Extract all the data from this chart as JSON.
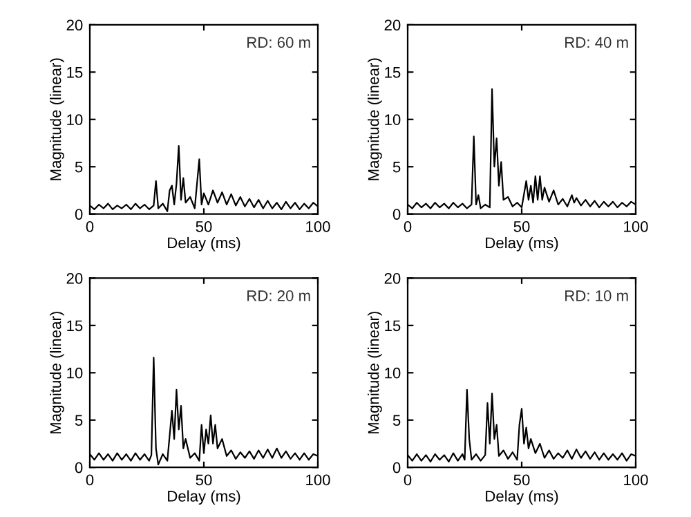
{
  "chart_data": [
    {
      "type": "line",
      "xlabel": "Delay (ms)",
      "ylabel": "Magnitude (linear)",
      "annotations": [
        "RD: 60 m"
      ],
      "xlim": [
        0,
        100
      ],
      "ylim": [
        0,
        20
      ],
      "xticks": [
        0,
        50,
        100
      ],
      "yticks": [
        0,
        5,
        10,
        15,
        20
      ],
      "series": [
        {
          "color": "#000000",
          "x": [
            0,
            2,
            4,
            6,
            8,
            10,
            12,
            14,
            16,
            18,
            20,
            22,
            24,
            26,
            28,
            29,
            30,
            32,
            34,
            35,
            36,
            37,
            38,
            39,
            40,
            41,
            42,
            44,
            46,
            48,
            49,
            50,
            52,
            54,
            56,
            58,
            60,
            62,
            64,
            66,
            68,
            70,
            72,
            74,
            76,
            78,
            80,
            82,
            84,
            86,
            88,
            90,
            92,
            94,
            96,
            98,
            100
          ],
          "values": [
            0.9,
            0.5,
            1.0,
            0.6,
            1.1,
            0.5,
            0.9,
            0.6,
            1.0,
            0.5,
            1.1,
            0.6,
            1.0,
            0.5,
            0.9,
            3.5,
            0.6,
            1.1,
            0.3,
            2.5,
            3.0,
            1.0,
            3.2,
            7.2,
            1.5,
            3.8,
            1.2,
            1.8,
            0.6,
            5.8,
            1.0,
            2.2,
            1.0,
            2.5,
            1.2,
            2.3,
            1.0,
            2.1,
            0.9,
            1.8,
            0.8,
            1.6,
            0.7,
            1.5,
            0.6,
            1.4,
            0.6,
            1.2,
            0.5,
            1.3,
            0.6,
            1.2,
            0.5,
            1.1,
            0.6,
            1.2,
            0.8
          ]
        }
      ]
    },
    {
      "type": "line",
      "xlabel": "Delay (ms)",
      "ylabel": "Magnitude (linear)",
      "annotations": [
        "RD: 40 m"
      ],
      "xlim": [
        0,
        100
      ],
      "ylim": [
        0,
        20
      ],
      "xticks": [
        0,
        50,
        100
      ],
      "yticks": [
        0,
        5,
        10,
        15,
        20
      ],
      "series": [
        {
          "color": "#000000",
          "x": [
            0,
            2,
            4,
            6,
            8,
            10,
            12,
            14,
            16,
            18,
            20,
            22,
            24,
            26,
            28,
            29,
            30,
            31,
            32,
            34,
            36,
            37,
            38,
            39,
            40,
            41,
            42,
            44,
            46,
            48,
            50,
            52,
            53,
            54,
            55,
            56,
            57,
            58,
            59,
            60,
            62,
            64,
            66,
            68,
            70,
            72,
            73,
            74,
            76,
            78,
            80,
            82,
            84,
            86,
            88,
            90,
            92,
            94,
            96,
            98,
            100
          ],
          "values": [
            1.0,
            0.6,
            1.2,
            0.7,
            1.1,
            0.6,
            1.2,
            0.7,
            1.1,
            0.6,
            1.2,
            0.7,
            1.1,
            0.6,
            1.0,
            8.2,
            1.0,
            2.0,
            0.6,
            1.0,
            0.7,
            13.2,
            5.0,
            8.0,
            3.0,
            5.5,
            1.5,
            1.8,
            0.8,
            1.2,
            0.7,
            3.5,
            1.5,
            3.0,
            1.2,
            4.0,
            1.5,
            4.0,
            1.5,
            2.8,
            1.3,
            2.5,
            1.0,
            1.6,
            0.8,
            2.0,
            1.2,
            1.7,
            0.9,
            1.5,
            0.8,
            1.4,
            0.7,
            1.3,
            0.8,
            1.3,
            0.7,
            1.2,
            0.8,
            1.3,
            1.0
          ]
        }
      ]
    },
    {
      "type": "line",
      "xlabel": "Delay (ms)",
      "ylabel": "Magnitude (linear)",
      "annotations": [
        "RD: 20 m"
      ],
      "xlim": [
        0,
        100
      ],
      "ylim": [
        0,
        20
      ],
      "xticks": [
        0,
        50,
        100
      ],
      "yticks": [
        0,
        5,
        10,
        15,
        20
      ],
      "series": [
        {
          "color": "#000000",
          "x": [
            0,
            2,
            4,
            6,
            8,
            10,
            12,
            14,
            16,
            18,
            20,
            22,
            24,
            26,
            27,
            28,
            29,
            30,
            32,
            34,
            36,
            37,
            38,
            39,
            40,
            41,
            42,
            44,
            46,
            48,
            49,
            50,
            51,
            52,
            53,
            54,
            55,
            56,
            58,
            60,
            62,
            64,
            66,
            68,
            70,
            72,
            74,
            76,
            78,
            80,
            82,
            84,
            86,
            88,
            90,
            92,
            94,
            96,
            98,
            100
          ],
          "values": [
            1.4,
            0.8,
            1.5,
            0.8,
            1.4,
            0.7,
            1.5,
            0.8,
            1.4,
            0.7,
            1.5,
            0.8,
            1.4,
            0.7,
            1.3,
            11.6,
            2.0,
            0.3,
            1.4,
            0.7,
            6.0,
            3.0,
            8.2,
            4.0,
            6.5,
            2.0,
            3.0,
            1.0,
            1.5,
            0.7,
            4.5,
            1.5,
            4.0,
            2.5,
            5.5,
            2.5,
            4.5,
            2.0,
            3.0,
            1.2,
            1.8,
            0.9,
            1.6,
            1.0,
            1.7,
            0.9,
            1.8,
            1.0,
            1.9,
            1.0,
            2.0,
            1.0,
            1.7,
            0.9,
            1.5,
            0.8,
            1.5,
            0.8,
            1.4,
            1.2
          ]
        }
      ]
    },
    {
      "type": "line",
      "xlabel": "Delay (ms)",
      "ylabel": "Magnitude (linear)",
      "annotations": [
        "RD: 10 m"
      ],
      "xlim": [
        0,
        100
      ],
      "ylim": [
        0,
        20
      ],
      "xticks": [
        0,
        50,
        100
      ],
      "yticks": [
        0,
        5,
        10,
        15,
        20
      ],
      "series": [
        {
          "color": "#000000",
          "x": [
            0,
            2,
            4,
            6,
            8,
            10,
            12,
            14,
            16,
            18,
            20,
            22,
            24,
            25,
            26,
            27,
            28,
            30,
            32,
            34,
            35,
            36,
            37,
            38,
            39,
            40,
            42,
            44,
            46,
            48,
            49,
            50,
            51,
            52,
            53,
            54,
            56,
            58,
            60,
            62,
            64,
            66,
            68,
            70,
            72,
            74,
            76,
            78,
            80,
            82,
            84,
            86,
            88,
            90,
            92,
            94,
            96,
            98,
            100
          ],
          "values": [
            1.3,
            0.7,
            1.4,
            0.7,
            1.3,
            0.6,
            1.4,
            0.8,
            1.3,
            0.6,
            1.5,
            0.7,
            1.4,
            0.8,
            8.2,
            3.0,
            0.8,
            1.4,
            0.7,
            1.3,
            6.8,
            2.5,
            7.8,
            3.0,
            4.5,
            1.2,
            1.8,
            0.9,
            1.6,
            0.8,
            4.5,
            6.2,
            2.5,
            4.2,
            2.0,
            3.0,
            1.5,
            2.5,
            1.0,
            1.8,
            0.9,
            1.5,
            1.0,
            1.8,
            0.9,
            1.9,
            1.0,
            1.7,
            0.9,
            1.6,
            0.8,
            1.5,
            0.8,
            1.4,
            0.8,
            1.5,
            0.7,
            1.4,
            1.2
          ]
        }
      ]
    }
  ]
}
